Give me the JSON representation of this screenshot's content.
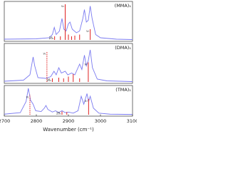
{
  "chart_data": [
    {
      "type": "line",
      "label": "(MMA)₁",
      "ylim": [
        0,
        1
      ],
      "x": [
        2700,
        2800,
        2840,
        2850,
        2856,
        2862,
        2872,
        2880,
        2886,
        2893,
        2900,
        2905,
        2912,
        2925,
        2935,
        2945,
        2950,
        2956,
        2962,
        2968,
        2974,
        2985,
        3000,
        3050,
        3100
      ],
      "series": [
        {
          "color": "#7a7af0",
          "values": [
            0.02,
            0.03,
            0.06,
            0.15,
            0.35,
            0.15,
            0.25,
            0.6,
            0.3,
            0.25,
            0.45,
            0.5,
            0.3,
            0.2,
            0.25,
            0.6,
            0.85,
            0.5,
            0.55,
            0.95,
            0.6,
            0.15,
            0.06,
            0.02,
            0.01
          ]
        }
      ],
      "sticks": {
        "color": "#e02020",
        "x": [
          2857,
          2875,
          2890,
          2900,
          2910,
          2920,
          2935,
          2968
        ],
        "values": [
          0.1,
          0.1,
          1.0,
          0.15,
          0.1,
          0.12,
          0.15,
          0.3
        ],
        "dashed": [
          false,
          false,
          false,
          false,
          false,
          false,
          false,
          false
        ],
        "labels": [
          "2δₛ",
          null,
          "ν₁",
          null,
          null,
          null,
          null,
          "ν₇"
        ]
      }
    },
    {
      "type": "line",
      "label": "(DMA)₁",
      "ylim": [
        0,
        1
      ],
      "x": [
        2700,
        2760,
        2780,
        2786,
        2790,
        2795,
        2805,
        2830,
        2845,
        2855,
        2862,
        2870,
        2878,
        2890,
        2898,
        2910,
        2920,
        2935,
        2942,
        2950,
        2956,
        2962,
        2968,
        2975,
        2990,
        3020,
        3100
      ],
      "series": [
        {
          "color": "#7a7af0",
          "values": [
            0.02,
            0.05,
            0.2,
            0.5,
            0.7,
            0.45,
            0.12,
            0.1,
            0.15,
            0.3,
            0.2,
            0.4,
            0.25,
            0.3,
            0.2,
            0.25,
            0.2,
            0.5,
            0.35,
            0.75,
            0.45,
            0.6,
            0.9,
            0.4,
            0.08,
            0.03,
            0.01
          ]
        }
      ],
      "sticks": {
        "color": "#e02020",
        "x": [
          2833,
          2850,
          2870,
          2885,
          2900,
          2915,
          2935,
          2962
        ],
        "values": [
          0.85,
          0.1,
          0.12,
          0.1,
          0.15,
          0.22,
          0.1,
          0.55
        ],
        "dashed": [
          true,
          false,
          false,
          false,
          false,
          false,
          false,
          false
        ],
        "labels": [
          "ν₁",
          "2δₛ",
          null,
          null,
          null,
          null,
          null,
          "ν₇"
        ]
      }
    },
    {
      "type": "line",
      "label": "(TMA)₁",
      "ylim": [
        0,
        1
      ],
      "x": [
        2700,
        2750,
        2768,
        2775,
        2782,
        2790,
        2798,
        2815,
        2825,
        2830,
        2836,
        2850,
        2860,
        2870,
        2880,
        2890,
        2900,
        2915,
        2930,
        2940,
        2948,
        2958,
        2963,
        2968,
        2978,
        2995,
        3030,
        3100
      ],
      "series": [
        {
          "color": "#7a7af0",
          "values": [
            0.02,
            0.08,
            0.5,
            1.0,
            0.55,
            0.4,
            0.15,
            0.12,
            0.25,
            0.35,
            0.2,
            0.1,
            0.15,
            0.08,
            0.15,
            0.08,
            0.1,
            0.06,
            0.15,
            0.7,
            0.4,
            0.8,
            0.5,
            0.7,
            0.25,
            0.06,
            0.02,
            0.01
          ]
        }
      ],
      "sticks": {
        "color": "#e02020",
        "x": [
          2780,
          2880,
          2895,
          2963
        ],
        "values": [
          0.75,
          0.12,
          0.1,
          0.6
        ],
        "dashed": [
          true,
          false,
          false,
          false
        ],
        "labels": [
          "ν₁",
          "2δₛ",
          null,
          "ν₇"
        ]
      },
      "xlim": [
        2700,
        3100
      ],
      "xticks": [
        2700,
        2800,
        2900,
        3000,
        3100
      ],
      "xlabel": "Wavenumber (cm⁻¹)"
    }
  ]
}
